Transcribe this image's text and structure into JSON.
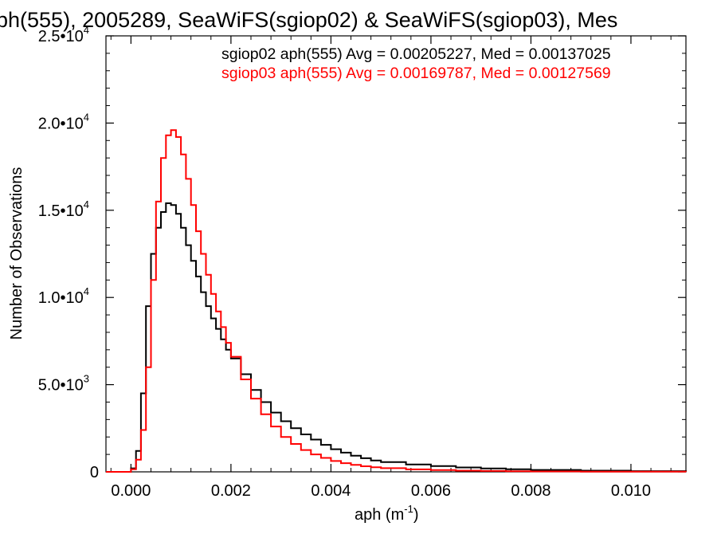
{
  "chart_data": {
    "type": "line",
    "title": "ph(555), 2005289, SeaWiFS(sgiop02) & SeaWiFS(sgiop03), Mes",
    "xlabel": "aph (m",
    "xlabel_sup": "-1",
    "xlabel_close": ")",
    "ylabel": "Number of Observations",
    "xlim": [
      -0.0005,
      0.0111
    ],
    "ylim": [
      0,
      25000
    ],
    "x_ticks": [
      {
        "v": 0.0,
        "label": "0.000"
      },
      {
        "v": 0.002,
        "label": "0.002"
      },
      {
        "v": 0.004,
        "label": "0.004"
      },
      {
        "v": 0.006,
        "label": "0.006"
      },
      {
        "v": 0.008,
        "label": "0.008"
      },
      {
        "v": 0.01,
        "label": "0.010"
      }
    ],
    "y_ticks": [
      {
        "v": 0,
        "mant": "0",
        "exp": ""
      },
      {
        "v": 5000,
        "mant": "5.0•10",
        "exp": "3"
      },
      {
        "v": 10000,
        "mant": "1.0•10",
        "exp": "4"
      },
      {
        "v": 15000,
        "mant": "1.5•10",
        "exp": "4"
      },
      {
        "v": 20000,
        "mant": "2.0•10",
        "exp": "4"
      },
      {
        "v": 25000,
        "mant": "2.5•10",
        "exp": "4"
      }
    ],
    "annotations": [
      {
        "text": "sgiop02 aph(555) Avg = 0.00205227, Med = 0.00137025",
        "color": "#000000"
      },
      {
        "text": "sgiop03 aph(555) Avg = 0.00169787, Med = 0.00127569",
        "color": "#ff0000"
      }
    ],
    "series": [
      {
        "color": "#000000",
        "x": [
          -0.0005,
          -0.0001,
          0.0,
          0.0001,
          0.0002,
          0.0003,
          0.0004,
          0.0005,
          0.0006,
          0.0007,
          0.0008,
          0.0009,
          0.001,
          0.0011,
          0.0012,
          0.0013,
          0.0014,
          0.0015,
          0.0016,
          0.0017,
          0.0018,
          0.0019,
          0.002,
          0.0022,
          0.0024,
          0.0026,
          0.0028,
          0.003,
          0.0032,
          0.0034,
          0.0036,
          0.0038,
          0.004,
          0.0042,
          0.0044,
          0.0046,
          0.0048,
          0.005,
          0.0055,
          0.006,
          0.0065,
          0.007,
          0.0075,
          0.008,
          0.009,
          0.01,
          0.0111
        ],
        "y": [
          0,
          0,
          200,
          1200,
          4500,
          9500,
          12500,
          14000,
          14900,
          15400,
          15300,
          14800,
          14000,
          13000,
          12100,
          11200,
          10300,
          9500,
          8800,
          8200,
          7600,
          7000,
          6500,
          5600,
          4700,
          4000,
          3400,
          2900,
          2500,
          2150,
          1850,
          1550,
          1300,
          1100,
          930,
          780,
          650,
          560,
          420,
          330,
          250,
          190,
          150,
          110,
          70,
          40,
          10
        ]
      },
      {
        "color": "#ff0000",
        "x": [
          -0.0005,
          -0.0001,
          0.0,
          0.0001,
          0.0002,
          0.0003,
          0.0004,
          0.0005,
          0.0006,
          0.0007,
          0.0008,
          0.0009,
          0.001,
          0.0011,
          0.0012,
          0.0013,
          0.0014,
          0.0015,
          0.0016,
          0.0017,
          0.0018,
          0.0019,
          0.002,
          0.0022,
          0.0024,
          0.0026,
          0.0028,
          0.003,
          0.0032,
          0.0034,
          0.0036,
          0.0038,
          0.004,
          0.0042,
          0.0044,
          0.0046,
          0.0048,
          0.005,
          0.0055,
          0.006,
          0.0065,
          0.007,
          0.0075,
          0.008,
          0.009,
          0.01,
          0.0111
        ],
        "y": [
          0,
          0,
          150,
          700,
          2400,
          6000,
          11000,
          15500,
          18000,
          19300,
          19600,
          19200,
          18200,
          16800,
          15300,
          13800,
          12500,
          11300,
          10200,
          9200,
          8300,
          7400,
          6600,
          5300,
          4200,
          3300,
          2600,
          2000,
          1600,
          1250,
          1000,
          800,
          620,
          500,
          400,
          320,
          260,
          210,
          140,
          100,
          70,
          50,
          35,
          25,
          15,
          8,
          3
        ]
      }
    ]
  }
}
